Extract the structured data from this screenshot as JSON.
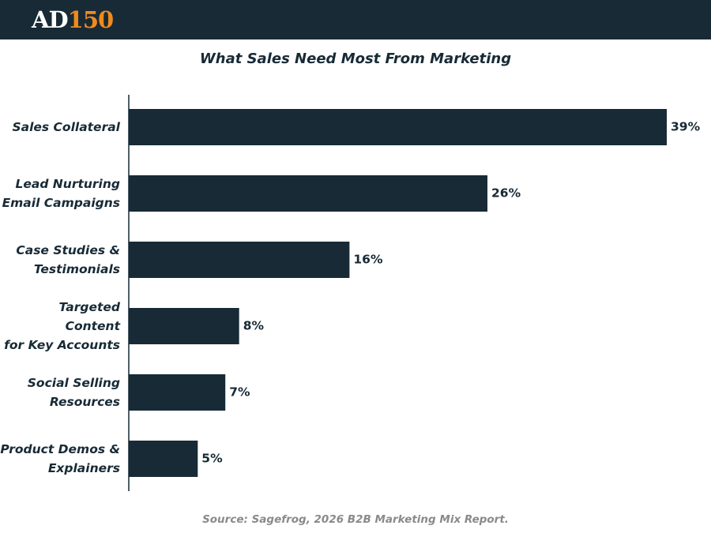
{
  "header": {
    "logo": {
      "left": "AD",
      "right": "150"
    }
  },
  "chart_data": {
    "type": "bar",
    "orientation": "horizontal",
    "title": "What Sales Need Most From Marketing",
    "categories": [
      "Sales Collateral",
      "Lead Nurturing\nEmail Campaigns",
      "Case Studies &\nTestimonials",
      "Targeted Content\nfor Key Accounts",
      "Social Selling\nResources",
      "Product Demos &\nExplainers"
    ],
    "values": [
      39,
      26,
      16,
      8,
      7,
      5
    ],
    "value_labels": [
      "39%",
      "26%",
      "16%",
      "8%",
      "7%",
      "5%"
    ],
    "color": "#172a36",
    "source": "Source: Sagefrog, 2026 B2B Marketing Mix Report."
  }
}
